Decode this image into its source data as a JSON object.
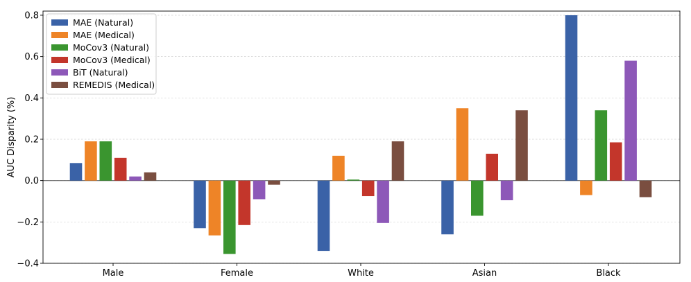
{
  "chart_data": {
    "type": "bar",
    "title": "",
    "xlabel": "",
    "ylabel": "AUC Disparity (%)",
    "ylim": [
      -0.4,
      0.82
    ],
    "yticks": [
      "0.8",
      "0.6",
      "0.4",
      "0.2",
      "0.0",
      "−0.2",
      "−0.4"
    ],
    "ytick_values": [
      0.8,
      0.6,
      0.4,
      0.2,
      0.0,
      -0.2,
      -0.4
    ],
    "grid": true,
    "legend_position": "top-left",
    "categories": [
      "Male",
      "Female",
      "White",
      "Asian",
      "Black"
    ],
    "series": [
      {
        "name": "MAE (Natural)",
        "color": "#3a62a7",
        "values": [
          0.085,
          -0.23,
          -0.34,
          -0.26,
          0.8
        ]
      },
      {
        "name": "MAE (Medical)",
        "color": "#ee8427",
        "values": [
          0.19,
          -0.265,
          0.12,
          0.35,
          -0.07
        ]
      },
      {
        "name": "MoCov3 (Natural)",
        "color": "#3a952f",
        "values": [
          0.19,
          -0.355,
          0.005,
          -0.17,
          0.34
        ]
      },
      {
        "name": "MoCov3 (Medical)",
        "color": "#c3362b",
        "values": [
          0.11,
          -0.215,
          -0.075,
          0.13,
          0.185
        ]
      },
      {
        "name": "BiT (Natural)",
        "color": "#8d58b8",
        "values": [
          0.02,
          -0.09,
          -0.205,
          -0.095,
          0.58
        ]
      },
      {
        "name": "REMEDIS (Medical)",
        "color": "#7a4e40",
        "values": [
          0.04,
          -0.02,
          0.19,
          0.34,
          -0.08
        ]
      }
    ]
  }
}
